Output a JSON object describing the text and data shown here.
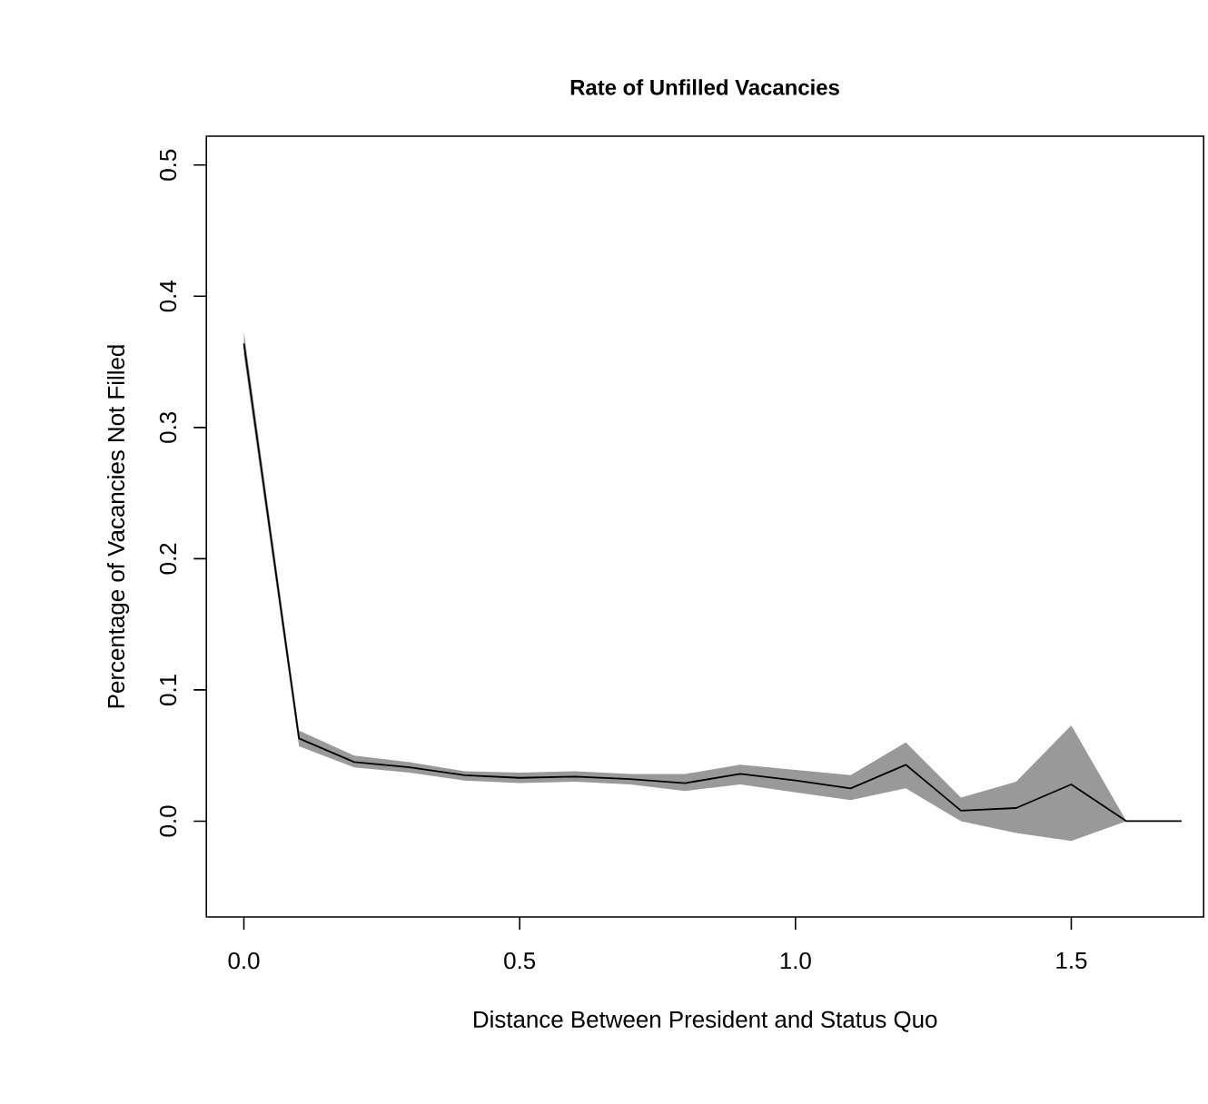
{
  "chart_data": {
    "type": "line",
    "title": "Rate of Unfilled Vacancies",
    "xlabel": "Distance Between President and Status Quo",
    "ylabel": "Percentage of Vacancies Not Filled",
    "x": [
      0,
      0.1,
      0.2,
      0.3,
      0.4,
      0.5,
      0.6,
      0.7,
      0.8,
      0.9,
      1.0,
      1.1,
      1.2,
      1.3,
      1.4,
      1.5,
      1.6,
      1.7
    ],
    "series": [
      {
        "color": "#000000",
        "values": [
          0.364,
          0.063,
          0.045,
          0.041,
          0.035,
          0.033,
          0.034,
          0.032,
          0.029,
          0.036,
          0.031,
          0.025,
          0.043,
          0.008,
          0.01,
          0.028,
          0,
          0
        ],
        "lower": [
          0.355,
          0.057,
          0.041,
          0.037,
          0.031,
          0.029,
          0.03,
          0.028,
          0.023,
          0.028,
          0.022,
          0.016,
          0.025,
          0.0,
          -0.009,
          -0.015,
          0,
          0
        ],
        "upper": [
          0.373,
          0.069,
          0.05,
          0.045,
          0.038,
          0.037,
          0.038,
          0.036,
          0.036,
          0.043,
          0.039,
          0.035,
          0.06,
          0.018,
          0.03,
          0.073,
          0,
          0
        ]
      }
    ],
    "xlim": [
      -0.068,
      1.74
    ],
    "ylim": [
      -0.073,
      0.522
    ],
    "xticks": [
      {
        "value": 0,
        "label": "0.0"
      },
      0.5,
      {
        "value": 1,
        "label": "1.0"
      },
      1.5
    ],
    "yticks": [
      {
        "value": 0,
        "label": "0.0"
      },
      0.1,
      0.2,
      0.3,
      0.4,
      0.5
    ],
    "grid": false,
    "marker": "none",
    "line_style": "solid"
  }
}
